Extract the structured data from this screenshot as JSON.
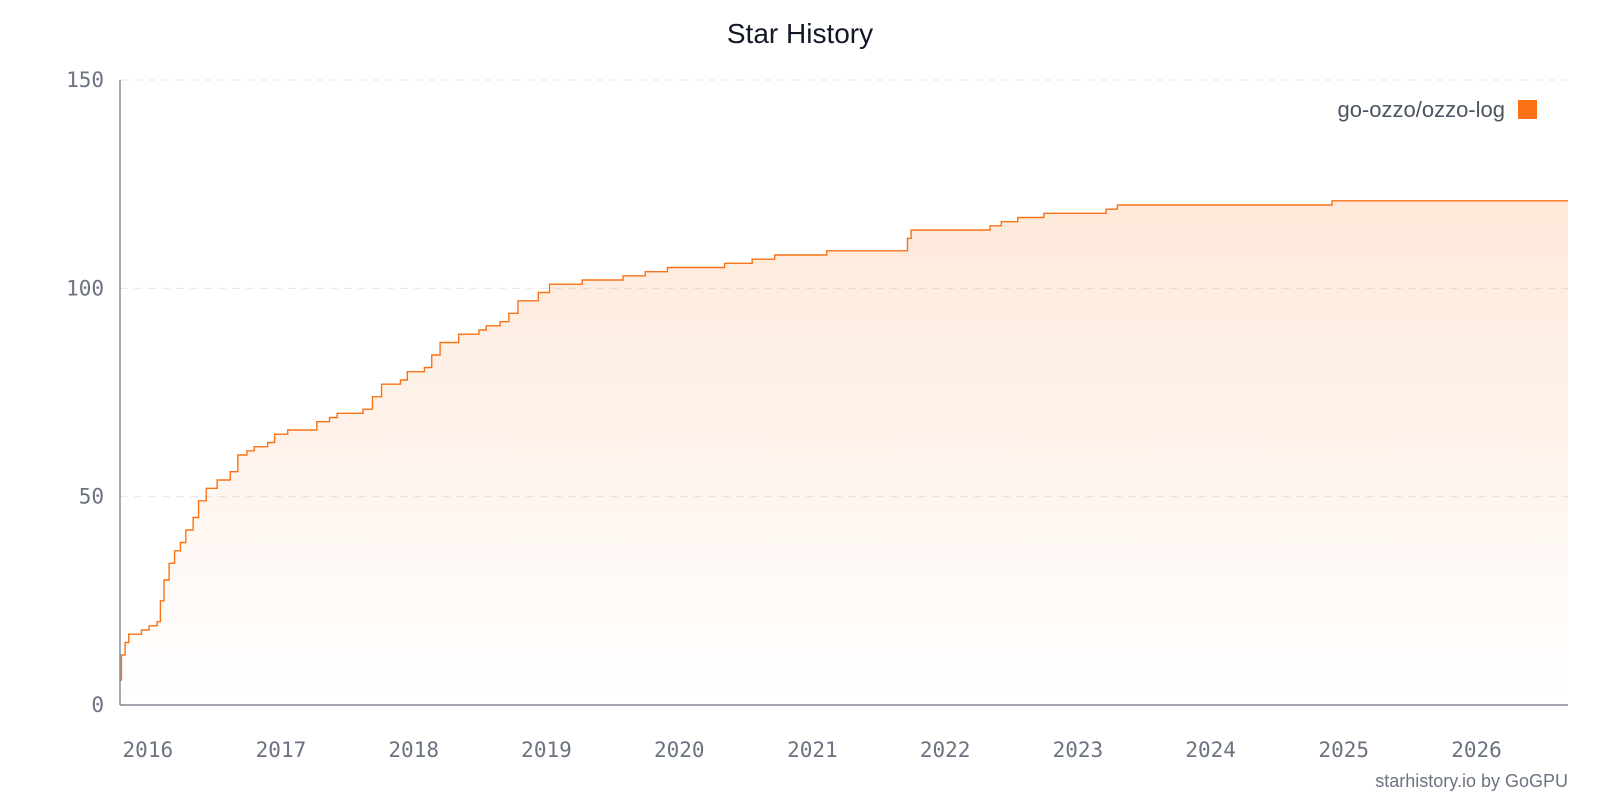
{
  "chart_data": {
    "type": "line",
    "title": "Star History",
    "xlabel": "",
    "ylabel": "",
    "ylim": [
      0,
      150
    ],
    "xlim": [
      "2015-10-22",
      "2026-09-15"
    ],
    "y_ticks": [
      0,
      50,
      100,
      150
    ],
    "x_ticks": [
      "2016",
      "2017",
      "2018",
      "2019",
      "2020",
      "2021",
      "2022",
      "2023",
      "2024",
      "2025",
      "2026"
    ],
    "grid": true,
    "legend_position": "top-right",
    "series": [
      {
        "name": "go-ozzo/ozzo-log",
        "color": "#f97316",
        "points": [
          [
            "2015-10-22",
            6
          ],
          [
            "2015-10-26",
            12
          ],
          [
            "2015-11-05",
            15
          ],
          [
            "2015-11-15",
            17
          ],
          [
            "2015-12-20",
            18
          ],
          [
            "2016-01-10",
            19
          ],
          [
            "2016-02-01",
            20
          ],
          [
            "2016-02-10",
            25
          ],
          [
            "2016-02-20",
            30
          ],
          [
            "2016-03-05",
            34
          ],
          [
            "2016-03-20",
            37
          ],
          [
            "2016-04-05",
            39
          ],
          [
            "2016-04-20",
            42
          ],
          [
            "2016-05-10",
            45
          ],
          [
            "2016-05-25",
            49
          ],
          [
            "2016-06-15",
            52
          ],
          [
            "2016-07-15",
            54
          ],
          [
            "2016-08-20",
            56
          ],
          [
            "2016-09-10",
            60
          ],
          [
            "2016-10-05",
            61
          ],
          [
            "2016-10-25",
            62
          ],
          [
            "2016-12-01",
            63
          ],
          [
            "2016-12-20",
            65
          ],
          [
            "2017-01-25",
            66
          ],
          [
            "2017-04-15",
            68
          ],
          [
            "2017-05-20",
            69
          ],
          [
            "2017-06-10",
            70
          ],
          [
            "2017-08-20",
            71
          ],
          [
            "2017-09-15",
            74
          ],
          [
            "2017-10-10",
            77
          ],
          [
            "2017-12-01",
            78
          ],
          [
            "2017-12-20",
            80
          ],
          [
            "2018-02-05",
            81
          ],
          [
            "2018-02-25",
            84
          ],
          [
            "2018-03-20",
            87
          ],
          [
            "2018-05-10",
            89
          ],
          [
            "2018-07-05",
            90
          ],
          [
            "2018-07-25",
            91
          ],
          [
            "2018-09-01",
            92
          ],
          [
            "2018-09-25",
            94
          ],
          [
            "2018-10-20",
            97
          ],
          [
            "2018-12-15",
            99
          ],
          [
            "2019-01-15",
            101
          ],
          [
            "2019-04-15",
            102
          ],
          [
            "2019-08-05",
            103
          ],
          [
            "2019-10-05",
            104
          ],
          [
            "2019-12-05",
            105
          ],
          [
            "2020-05-10",
            106
          ],
          [
            "2020-07-25",
            107
          ],
          [
            "2020-09-25",
            108
          ],
          [
            "2021-02-15",
            109
          ],
          [
            "2021-09-25",
            112
          ],
          [
            "2021-10-05",
            114
          ],
          [
            "2022-05-10",
            115
          ],
          [
            "2022-06-10",
            116
          ],
          [
            "2022-07-25",
            117
          ],
          [
            "2022-10-05",
            118
          ],
          [
            "2023-03-25",
            119
          ],
          [
            "2023-04-25",
            120
          ],
          [
            "2024-12-05",
            121
          ],
          [
            "2026-09-15",
            121
          ]
        ]
      }
    ]
  },
  "credit": "starhistory.io by GoGPU"
}
